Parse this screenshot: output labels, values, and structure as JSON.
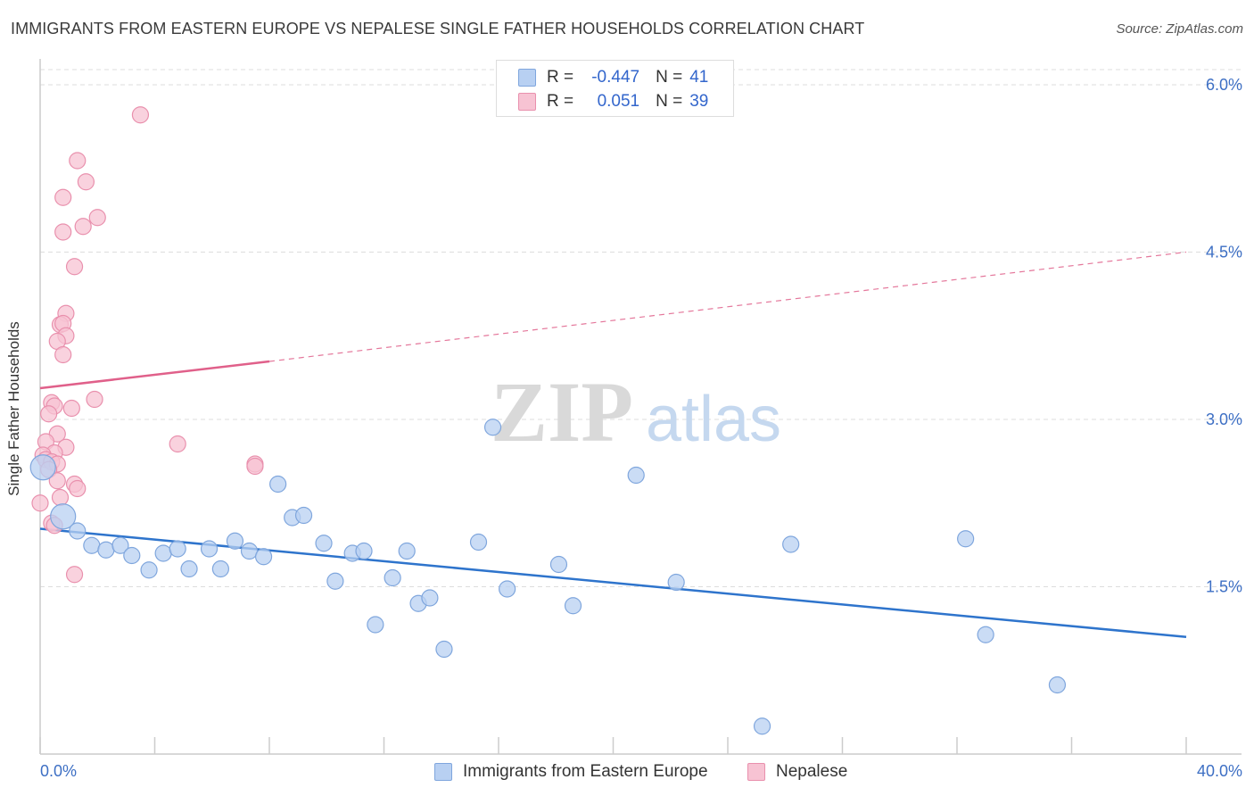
{
  "header": {
    "title": "IMMIGRANTS FROM EASTERN EUROPE VS NEPALESE SINGLE FATHER HOUSEHOLDS CORRELATION CHART",
    "source": "Source: ZipAtlas.com"
  },
  "legend_stats": {
    "rows": [
      {
        "r_label": "R =",
        "r_value": "-0.447",
        "n_label": "N =",
        "n_value": "41"
      },
      {
        "r_label": "R =",
        "r_value": "0.051",
        "n_label": "N =",
        "n_value": "39"
      }
    ]
  },
  "bottom_legend": {
    "items": [
      {
        "label": "Immigrants from Eastern Europe"
      },
      {
        "label": "Nepalese"
      }
    ]
  },
  "colors": {
    "blue_fill": "#b8d0f2",
    "blue_stroke": "#7fa6dd",
    "blue_line": "#2e74cc",
    "pink_fill": "#f7c3d3",
    "pink_stroke": "#e990ad",
    "pink_line": "#e0608a",
    "tick_label": "#3d6fc4",
    "grid": "#dddddd"
  },
  "chart_data": {
    "type": "scatter",
    "title": "IMMIGRANTS FROM EASTERN EUROPE VS NEPALESE SINGLE FATHER HOUSEHOLDS CORRELATION CHART",
    "xlabel": "",
    "ylabel": "Single Father Households",
    "xlim": [
      0,
      40
    ],
    "ylim": [
      0,
      6.2
    ],
    "x_tick_labels": [
      "0.0%",
      "40.0%"
    ],
    "y_ticks": [
      1.5,
      3.0,
      4.5,
      6.0
    ],
    "y_tick_labels": [
      "1.5%",
      "3.0%",
      "4.5%",
      "6.0%"
    ],
    "grid": true,
    "watermark": "ZIPatlas",
    "series": [
      {
        "name": "Immigrants from Eastern Europe",
        "color": "#b8d0f2",
        "points": [
          {
            "x": 0.1,
            "y": 2.57,
            "big": true
          },
          {
            "x": 0.8,
            "y": 2.13,
            "big": true
          },
          {
            "x": 1.3,
            "y": 2.0
          },
          {
            "x": 1.8,
            "y": 1.87
          },
          {
            "x": 2.3,
            "y": 1.83
          },
          {
            "x": 2.8,
            "y": 1.87
          },
          {
            "x": 3.2,
            "y": 1.78
          },
          {
            "x": 3.8,
            "y": 1.65
          },
          {
            "x": 4.3,
            "y": 1.8
          },
          {
            "x": 4.8,
            "y": 1.84
          },
          {
            "x": 5.2,
            "y": 1.66
          },
          {
            "x": 5.9,
            "y": 1.84
          },
          {
            "x": 6.3,
            "y": 1.66
          },
          {
            "x": 6.8,
            "y": 1.91
          },
          {
            "x": 7.3,
            "y": 1.82
          },
          {
            "x": 7.8,
            "y": 1.77
          },
          {
            "x": 8.3,
            "y": 2.42
          },
          {
            "x": 8.8,
            "y": 2.12
          },
          {
            "x": 9.2,
            "y": 2.14
          },
          {
            "x": 9.9,
            "y": 1.89
          },
          {
            "x": 10.3,
            "y": 1.55
          },
          {
            "x": 10.9,
            "y": 1.8
          },
          {
            "x": 11.3,
            "y": 1.82
          },
          {
            "x": 11.7,
            "y": 1.16
          },
          {
            "x": 12.3,
            "y": 1.58
          },
          {
            "x": 12.8,
            "y": 1.82
          },
          {
            "x": 13.2,
            "y": 1.35
          },
          {
            "x": 13.6,
            "y": 1.4
          },
          {
            "x": 14.1,
            "y": 0.94
          },
          {
            "x": 15.3,
            "y": 1.9
          },
          {
            "x": 15.8,
            "y": 2.93
          },
          {
            "x": 16.3,
            "y": 1.48
          },
          {
            "x": 18.1,
            "y": 1.7
          },
          {
            "x": 18.6,
            "y": 1.33
          },
          {
            "x": 20.8,
            "y": 2.5
          },
          {
            "x": 22.2,
            "y": 1.54
          },
          {
            "x": 25.2,
            "y": 0.25
          },
          {
            "x": 26.2,
            "y": 1.88
          },
          {
            "x": 32.3,
            "y": 1.93
          },
          {
            "x": 33.0,
            "y": 1.07
          },
          {
            "x": 35.5,
            "y": 0.62
          }
        ],
        "trend": {
          "x1": 0,
          "y1": 2.02,
          "x2": 40,
          "y2": 1.05
        }
      },
      {
        "name": "Nepalese",
        "color": "#f7c3d3",
        "points": [
          {
            "x": 3.5,
            "y": 5.73
          },
          {
            "x": 1.3,
            "y": 5.32
          },
          {
            "x": 1.6,
            "y": 5.13
          },
          {
            "x": 0.8,
            "y": 4.99
          },
          {
            "x": 2.0,
            "y": 4.81
          },
          {
            "x": 1.5,
            "y": 4.73
          },
          {
            "x": 0.8,
            "y": 4.68
          },
          {
            "x": 1.2,
            "y": 4.37
          },
          {
            "x": 0.9,
            "y": 3.95
          },
          {
            "x": 0.7,
            "y": 3.85
          },
          {
            "x": 0.8,
            "y": 3.86
          },
          {
            "x": 0.9,
            "y": 3.75
          },
          {
            "x": 0.6,
            "y": 3.7
          },
          {
            "x": 0.8,
            "y": 3.58
          },
          {
            "x": 1.9,
            "y": 3.18
          },
          {
            "x": 0.4,
            "y": 3.15
          },
          {
            "x": 0.5,
            "y": 3.12
          },
          {
            "x": 1.1,
            "y": 3.1
          },
          {
            "x": 0.3,
            "y": 3.05
          },
          {
            "x": 0.6,
            "y": 2.87
          },
          {
            "x": 4.8,
            "y": 2.78
          },
          {
            "x": 0.2,
            "y": 2.8
          },
          {
            "x": 0.9,
            "y": 2.75
          },
          {
            "x": 0.5,
            "y": 2.7
          },
          {
            "x": 0.1,
            "y": 2.68
          },
          {
            "x": 0.2,
            "y": 2.64
          },
          {
            "x": 0.4,
            "y": 2.62
          },
          {
            "x": 0.6,
            "y": 2.6
          },
          {
            "x": 7.5,
            "y": 2.6
          },
          {
            "x": 7.5,
            "y": 2.58
          },
          {
            "x": 0.3,
            "y": 2.55
          },
          {
            "x": 0.6,
            "y": 2.45
          },
          {
            "x": 1.2,
            "y": 2.42
          },
          {
            "x": 1.3,
            "y": 2.38
          },
          {
            "x": 0.7,
            "y": 2.3
          },
          {
            "x": 0.0,
            "y": 2.25
          },
          {
            "x": 0.4,
            "y": 2.07
          },
          {
            "x": 0.5,
            "y": 2.05
          },
          {
            "x": 1.2,
            "y": 1.61
          }
        ],
        "trend": {
          "x1": 0,
          "y1": 3.28,
          "x2": 8,
          "y2": 3.52,
          "dash_to_x": 40,
          "dash_to_y": 4.5
        }
      }
    ]
  }
}
